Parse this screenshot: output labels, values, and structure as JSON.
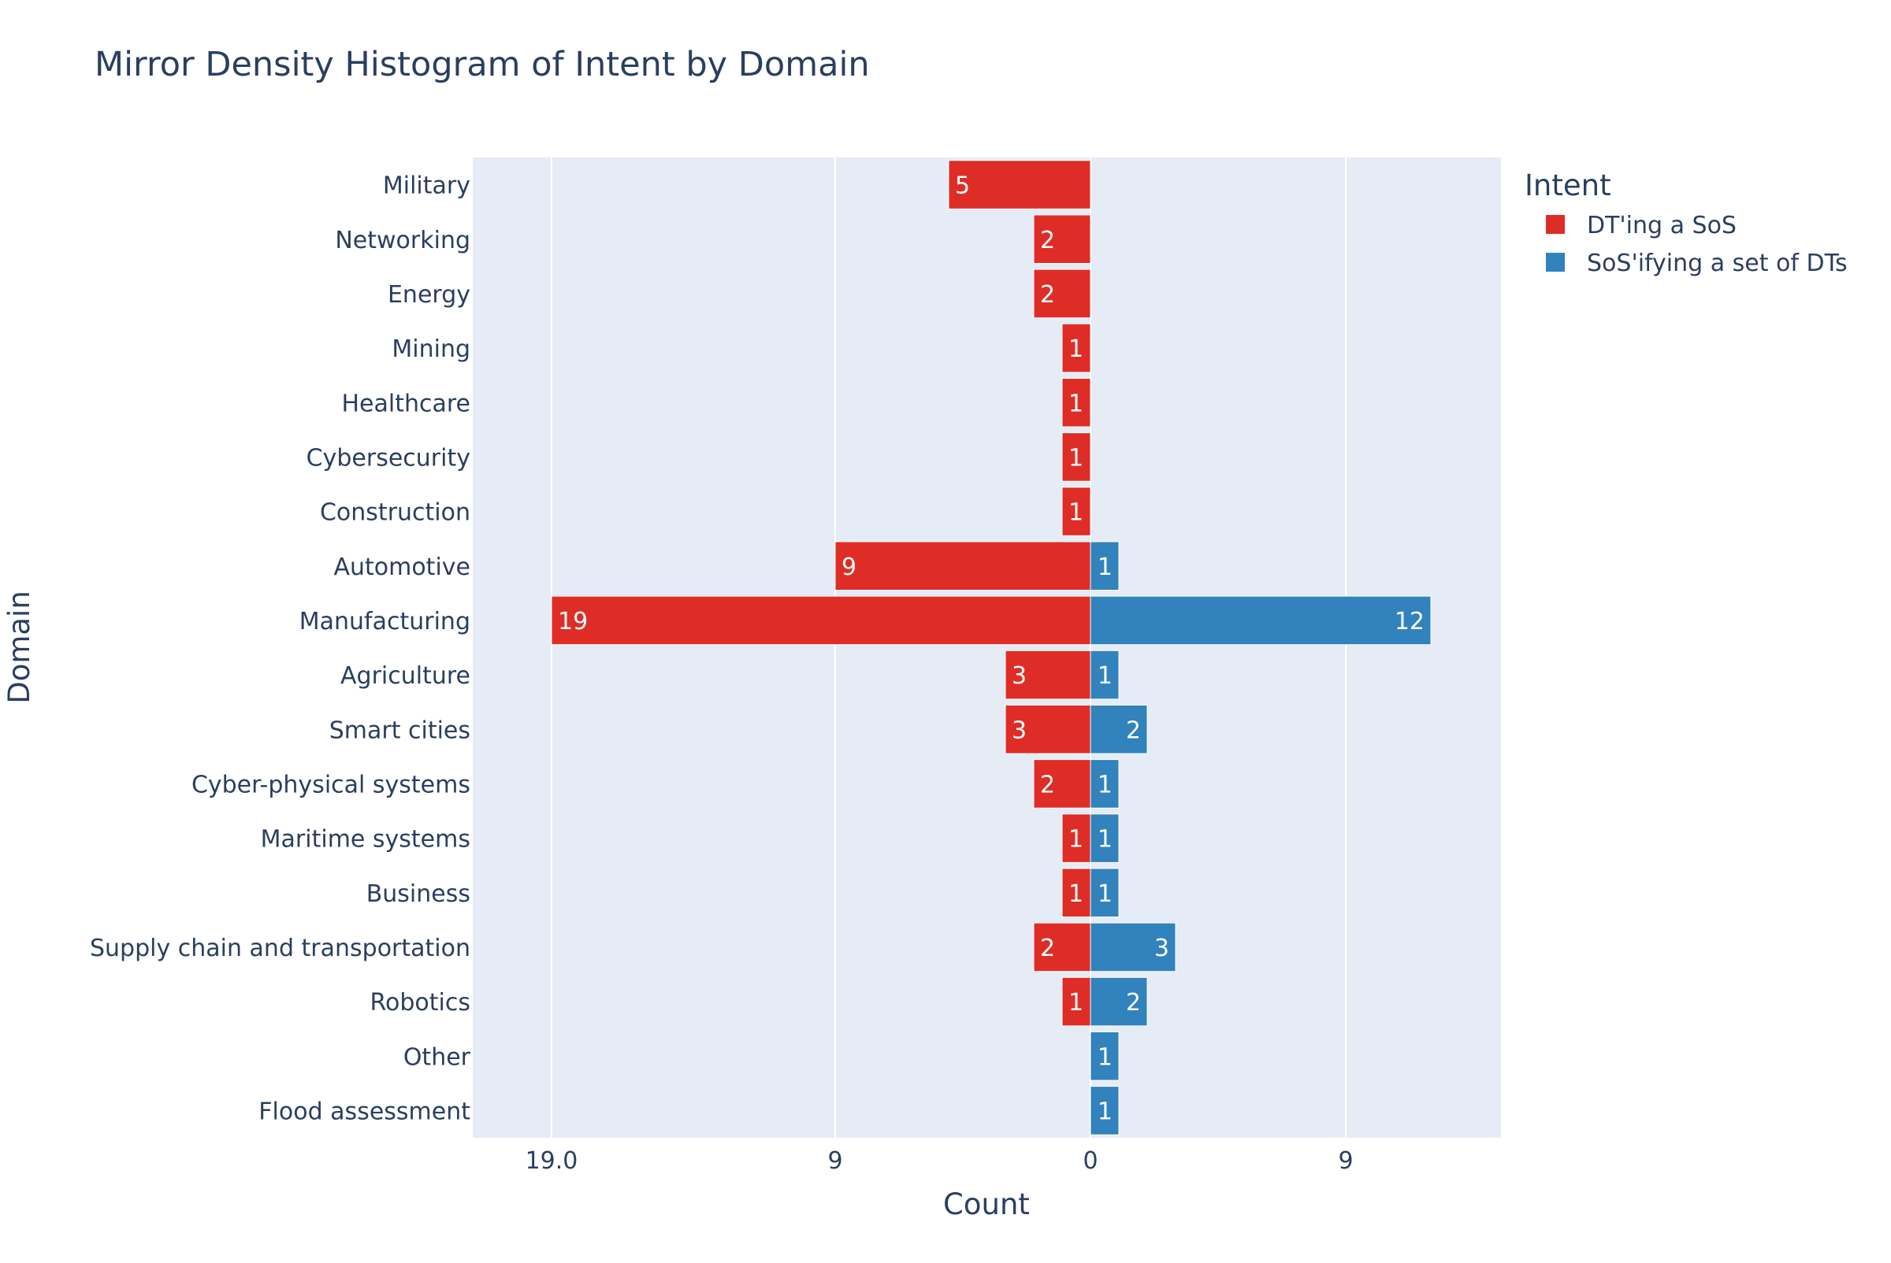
{
  "chart_data": {
    "type": "bar",
    "orientation": "horizontal",
    "mirrored": true,
    "title": "Mirror Density Histogram of Intent by Domain",
    "xlabel": "Count",
    "ylabel": "Domain",
    "legend_title": "Intent",
    "legend_position": "top-right",
    "grid": true,
    "xlim": [
      -20,
      14.5
    ],
    "x_tick_values": [
      -19,
      -9,
      0,
      9
    ],
    "x_tick_labels": [
      "19.0",
      "9",
      "0",
      "9"
    ],
    "categories": [
      "Military",
      "Networking",
      "Energy",
      "Mining",
      "Healthcare",
      "Cybersecurity",
      "Construction",
      "Automotive",
      "Manufacturing",
      "Agriculture",
      "Smart cities",
      "Cyber-physical systems",
      "Maritime systems",
      "Business",
      "Supply chain and transportation",
      "Robotics",
      "Other",
      "Flood assessment"
    ],
    "series": [
      {
        "name": "DT'ing a SoS",
        "color": "#de2d26",
        "side": "left",
        "values": [
          5,
          2,
          2,
          1,
          1,
          1,
          1,
          9,
          19,
          3,
          3,
          2,
          1,
          1,
          2,
          1,
          0,
          0
        ]
      },
      {
        "name": "SoS'ifying a set of DTs",
        "color": "#3182bd",
        "side": "right",
        "values": [
          0,
          0,
          0,
          0,
          0,
          0,
          0,
          1,
          12,
          1,
          2,
          1,
          1,
          1,
          3,
          2,
          1,
          1
        ]
      }
    ],
    "colors": {
      "plot_background": "#e5ecf6",
      "grid": "#ffffff",
      "text": "#2a3f5f",
      "bar_label": "#ffffff"
    }
  }
}
